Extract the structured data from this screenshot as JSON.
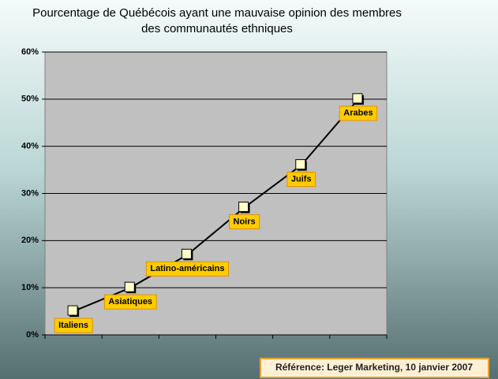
{
  "chart_data": {
    "type": "line",
    "title": [
      "Pourcentage de Québécois ayant une mauvaise opinion des membres",
      "des communautés ethniques"
    ],
    "categories": [
      "Italiens",
      "Asiatiques",
      "Latino-américains",
      "Noirs",
      "Juifs",
      "Arabes"
    ],
    "values": [
      5,
      10,
      17,
      27,
      36,
      50
    ],
    "color": "#000000",
    "ylim": [
      0,
      60
    ],
    "yticks": [
      {
        "value": 0,
        "label": "0%"
      },
      {
        "value": 10,
        "label": "10%"
      },
      {
        "value": 20,
        "label": "20%"
      },
      {
        "value": 30,
        "label": "30%"
      },
      {
        "value": 40,
        "label": "40%"
      },
      {
        "value": 50,
        "label": "50%"
      },
      {
        "value": 60,
        "label": "60%"
      }
    ],
    "grid": true,
    "annotation": "Référence: Leger Marketing, 10 janvier 2007"
  }
}
